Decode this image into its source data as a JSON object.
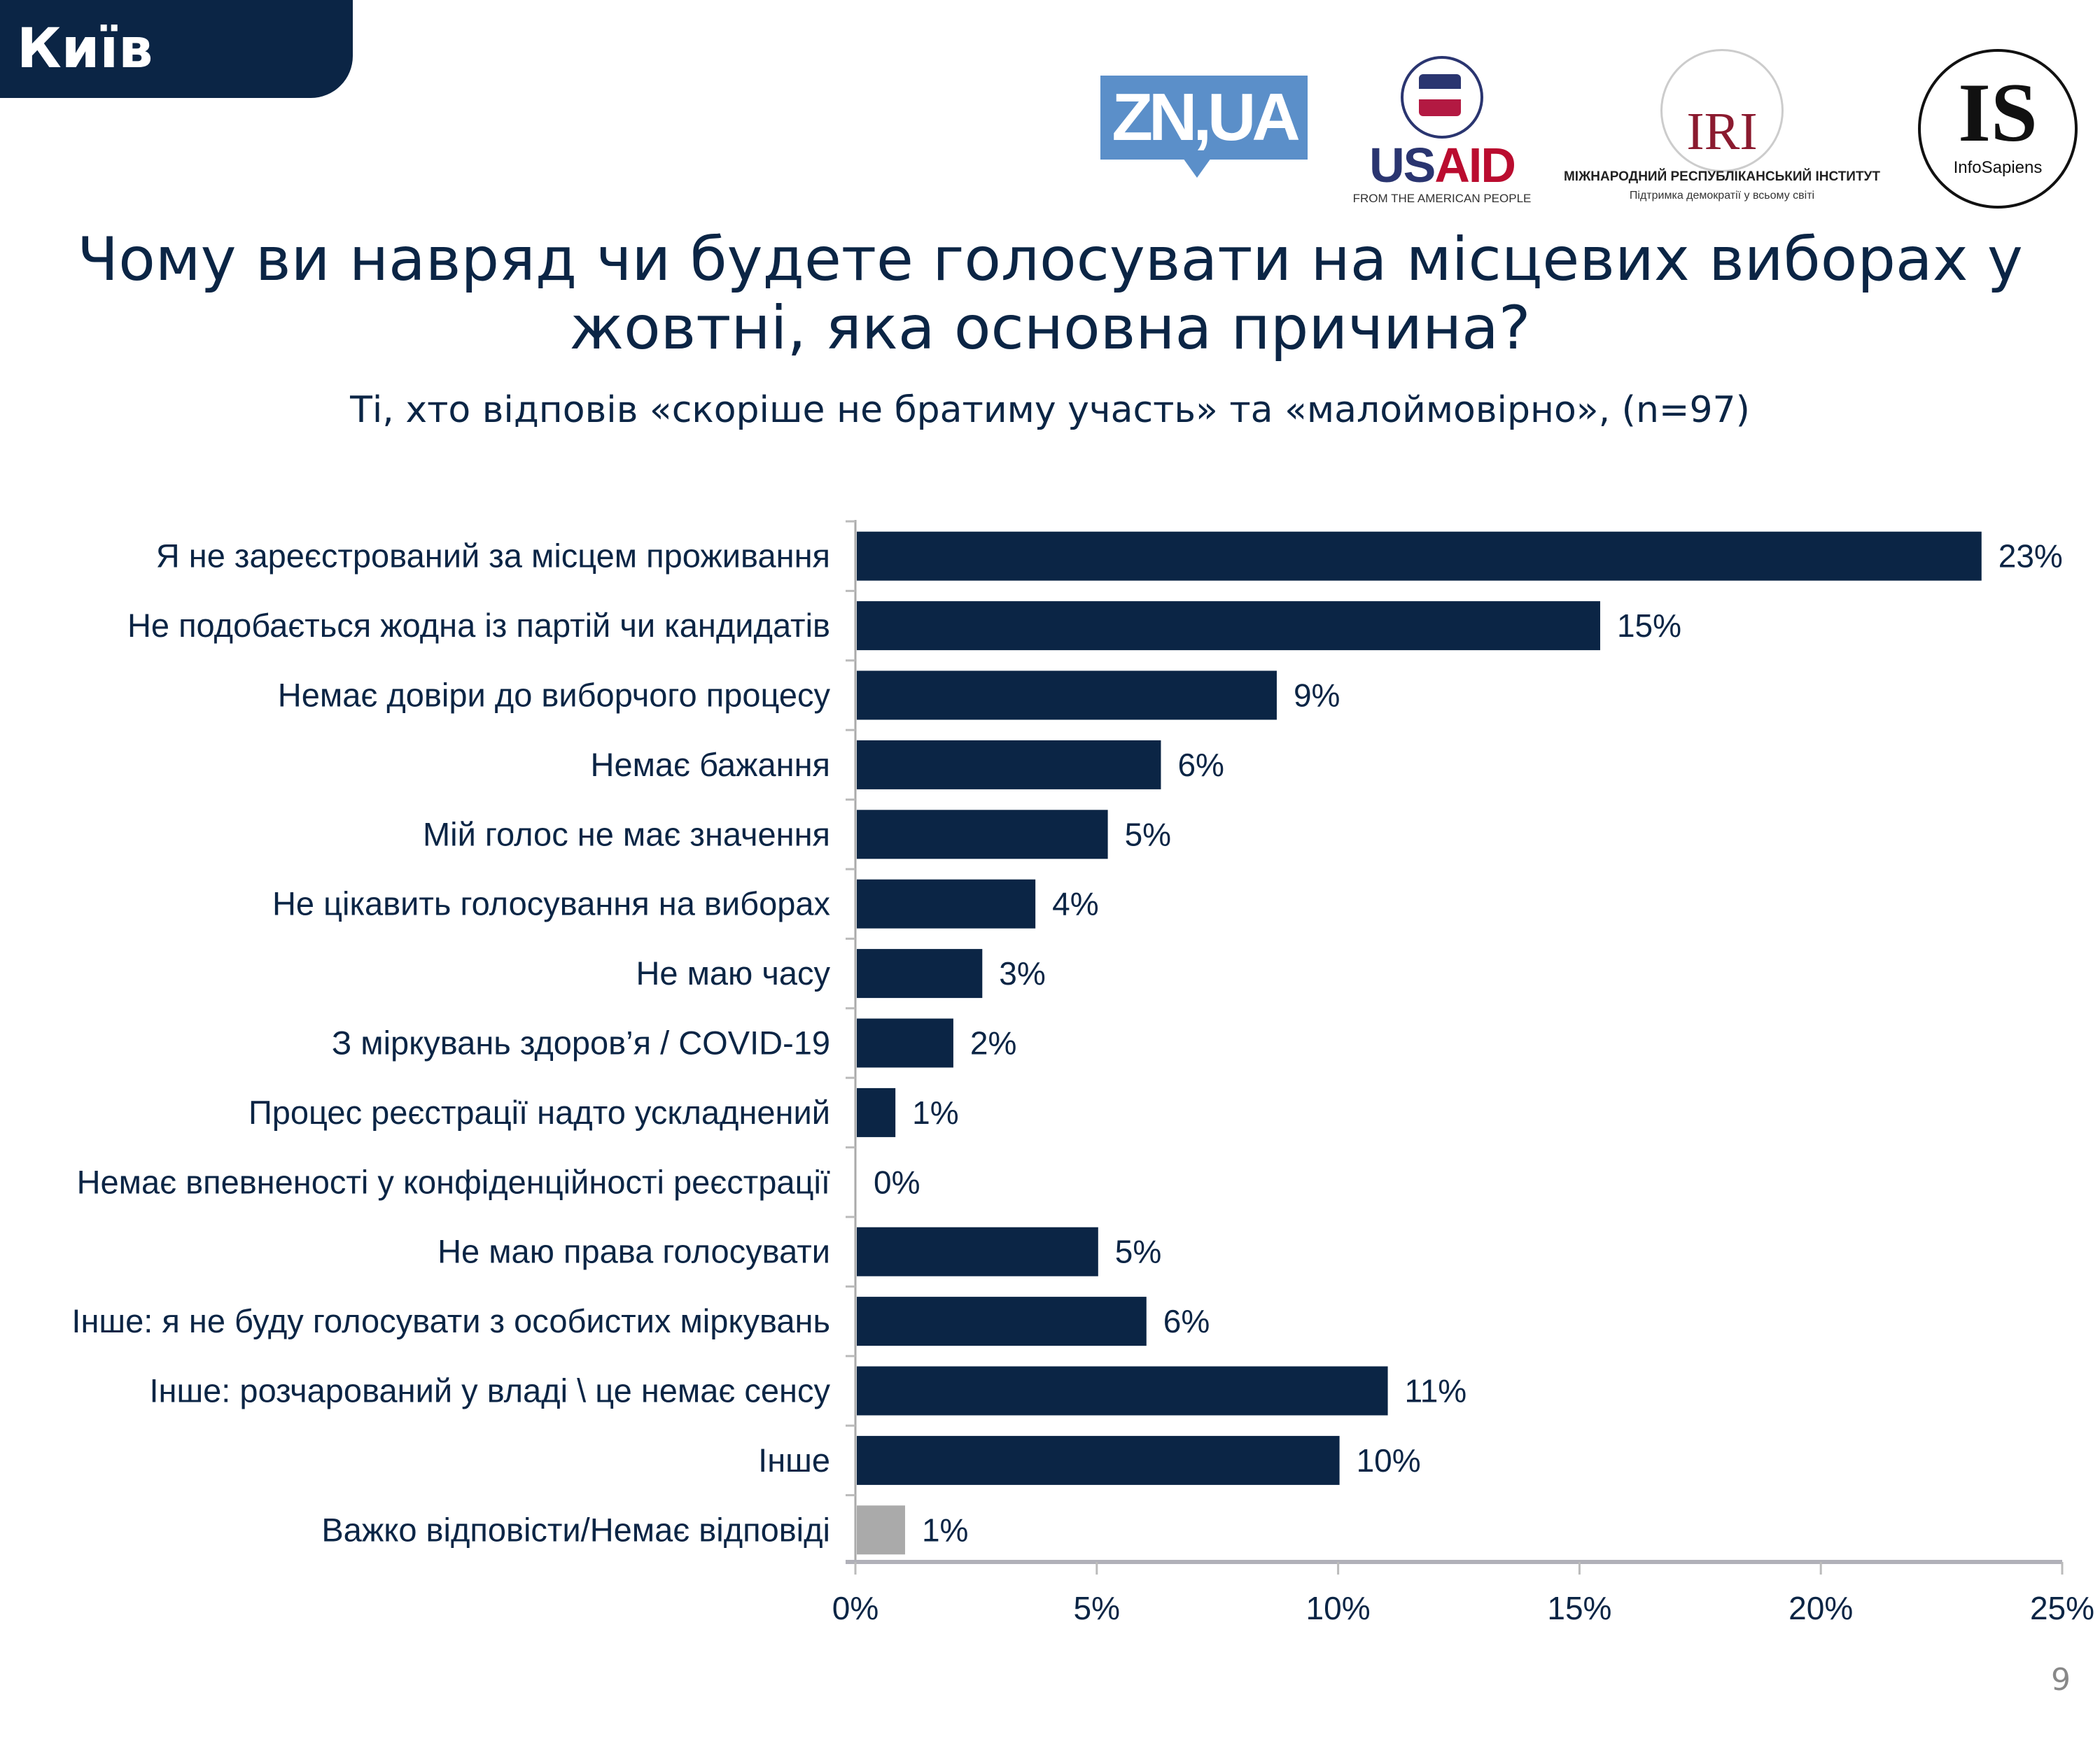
{
  "header": {
    "region_badge": "Київ",
    "page_number": "9"
  },
  "logos": {
    "zn": "ZN,UA",
    "usaid": {
      "us": "US",
      "aid": "AID",
      "tagline": "FROM THE AMERICAN PEOPLE"
    },
    "iri": {
      "mark": "IRI",
      "name": "МІЖНАРОДНИЙ РЕСПУБЛІКАНСЬКИЙ ІНСТИТУТ",
      "tagline": "Підтримка демократії у всьому світі"
    },
    "infosapiens": {
      "mark": "IS",
      "name": "InfoSapiens"
    }
  },
  "chart_data": {
    "type": "bar",
    "orientation": "horizontal",
    "title": "Чому ви навряд чи будете голосувати на місцевих виборах у жовтні, яка основна причина?",
    "subtitle": "Ті, хто відповів «скоріше не братиму участь» та «малоймовірно», (n=97)",
    "categories": [
      "Я не зареєстрований за місцем проживання",
      "Не подобається жодна із партій чи кандидатів",
      "Немає довіри до виборчого процесу",
      "Немає бажання",
      "Мій голос не має значення",
      "Не цікавить голосування на виборах",
      "Не маю часу",
      "З міркувань здоров’я / COVID-19",
      "Процес реєстрації надто ускладнений",
      "Немає впевненості у конфіденційності реєстрації",
      "Не маю права голосувати",
      "Інше: я не буду голосувати з особистих міркувань",
      "Інше: розчарований у владі \\ це немає сенсу",
      "Інше",
      "Важко відповісти/Немає відповіді"
    ],
    "values": [
      23.3,
      15.4,
      8.7,
      6.3,
      5.2,
      3.7,
      2.6,
      2.0,
      0.8,
      0,
      5.0,
      6.0,
      11.0,
      10.0,
      1.0
    ],
    "data_labels": [
      "23%",
      "15%",
      "9%",
      "6%",
      "5%",
      "4%",
      "3%",
      "2%",
      "1%",
      "0%",
      "5%",
      "6%",
      "11%",
      "10%",
      "1%"
    ],
    "xlim": [
      0,
      25
    ],
    "xticks": [
      "0%",
      "5%",
      "10%",
      "15%",
      "20%",
      "25%"
    ],
    "grid": false,
    "colors": {
      "bar": "#0b2545",
      "last_bar": "#aaaaaa"
    }
  }
}
